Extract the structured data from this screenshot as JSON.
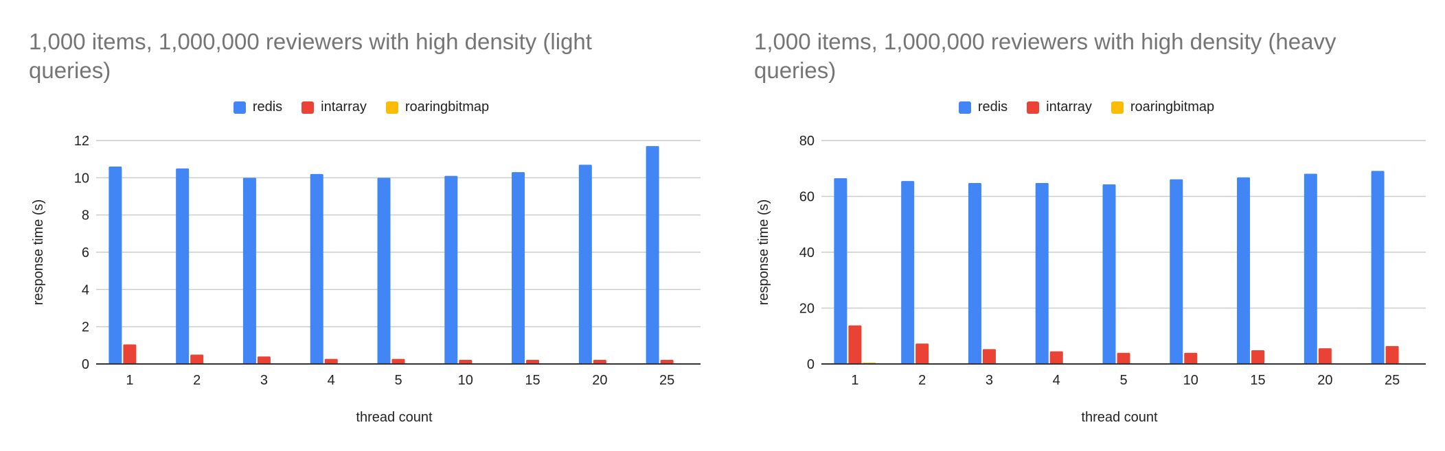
{
  "colors": {
    "redis": "#4285f4",
    "intarray": "#ea4335",
    "roaringbitmap": "#fbbc04",
    "gridline": "#cccccc",
    "axis": "#333333",
    "title": "#757575"
  },
  "chart_data": [
    {
      "type": "bar",
      "title": "1,000 items, 1,000,000 reviewers with high density (light queries)",
      "title_lines": [
        "1,000 items, 1,000,000 reviewers with high density (light",
        "queries)"
      ],
      "xlabel": "thread count",
      "ylabel": "response time (s)",
      "categories": [
        "1",
        "2",
        "3",
        "4",
        "5",
        "10",
        "15",
        "20",
        "25"
      ],
      "ylim": [
        0,
        12
      ],
      "yticks": [
        "0",
        "2",
        "4",
        "6",
        "8",
        "10",
        "12"
      ],
      "grid": true,
      "legend_position": "top",
      "series": [
        {
          "name": "redis",
          "values": [
            10.6,
            10.5,
            10.0,
            10.2,
            10.0,
            10.1,
            10.3,
            10.7,
            11.7
          ]
        },
        {
          "name": "intarray",
          "values": [
            1.05,
            0.5,
            0.4,
            0.27,
            0.27,
            0.22,
            0.22,
            0.22,
            0.22
          ]
        },
        {
          "name": "roaringbitmap",
          "values": [
            0.02,
            0.01,
            0.01,
            0.01,
            0.01,
            0.01,
            0.01,
            0.01,
            0.01
          ]
        }
      ]
    },
    {
      "type": "bar",
      "title": "1,000 items, 1,000,000 reviewers with high density (heavy queries)",
      "title_lines": [
        "1,000 items, 1,000,000 reviewers with high density (heavy",
        "queries)"
      ],
      "xlabel": "thread count",
      "ylabel": "response time (s)",
      "categories": [
        "1",
        "2",
        "3",
        "4",
        "5",
        "10",
        "15",
        "20",
        "25"
      ],
      "ylim": [
        0,
        80
      ],
      "yticks": [
        "0",
        "20",
        "40",
        "60",
        "80"
      ],
      "grid": true,
      "legend_position": "top",
      "series": [
        {
          "name": "redis",
          "values": [
            66.5,
            65.5,
            64.8,
            64.8,
            64.3,
            66.1,
            66.8,
            68.1,
            69.1
          ]
        },
        {
          "name": "intarray",
          "values": [
            13.8,
            7.3,
            5.3,
            4.5,
            4.0,
            4.0,
            4.9,
            5.6,
            6.4
          ]
        },
        {
          "name": "roaringbitmap",
          "values": [
            0.5,
            0.1,
            0.1,
            0.1,
            0.1,
            0.1,
            0.1,
            0.1,
            0.1
          ]
        }
      ]
    }
  ]
}
